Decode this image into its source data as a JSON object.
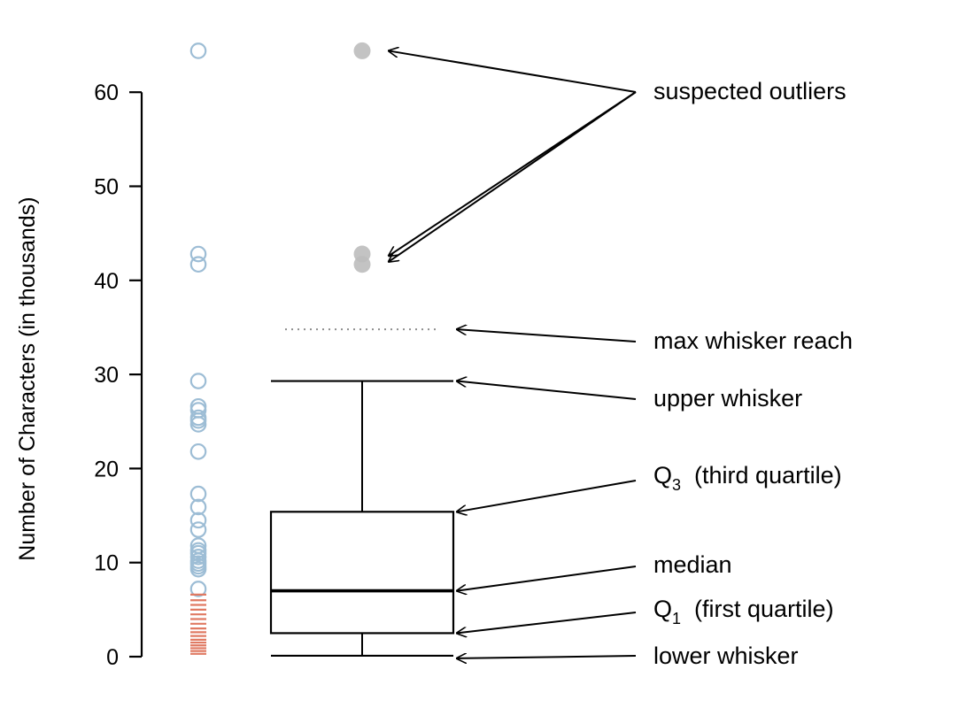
{
  "chart_data": {
    "type": "boxplot",
    "ylabel": "Number of Characters (in thousands)",
    "ylim": [
      0,
      65
    ],
    "yticks": [
      0,
      10,
      20,
      30,
      40,
      50,
      60
    ],
    "raw_points": [
      64.4,
      42.8,
      41.7,
      29.3,
      26.6,
      26.2,
      25.4,
      25.1,
      24.7,
      21.8,
      17.3,
      15.9,
      14.5,
      13.5,
      11.8,
      11.3,
      11.0,
      10.6,
      10.2,
      9.9,
      9.6,
      9.3,
      7.2
    ],
    "rug_points": [
      0.3,
      0.6,
      0.9,
      1.2,
      1.5,
      1.8,
      2.2,
      2.6,
      3.0,
      3.5,
      4.0,
      4.5,
      5.0,
      5.5,
      6.0,
      6.6
    ],
    "box": {
      "lower_whisker": 0.1,
      "q1": 2.5,
      "median": 7.0,
      "q3": 15.4,
      "upper_whisker": 29.3,
      "max_whisker_reach": 34.8,
      "outliers": [
        64.4,
        42.8,
        41.7
      ]
    },
    "annotations": {
      "suspected_outliers": "suspected outliers",
      "max_whisker_reach": "max whisker reach",
      "upper_whisker": "upper whisker",
      "q3_main": "Q",
      "q3_sub": "3",
      "q3_rest": "(third quartile)",
      "median": "median",
      "q1_main": "Q",
      "q1_sub": "1",
      "q1_rest": "(first quartile)",
      "lower_whisker": "lower whisker"
    }
  },
  "colors": {
    "raw_point": "#9dbdd5",
    "rug_point": "#e07a63",
    "outlier": "#bdbdbd",
    "reach_line": "#8f8f8f",
    "ink": "#000000"
  }
}
